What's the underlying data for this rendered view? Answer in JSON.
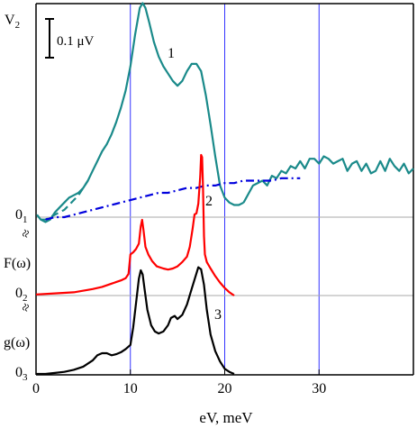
{
  "chart_data": {
    "type": "line",
    "xlabel": "eV, meV",
    "xlim": [
      0,
      40
    ],
    "x_ticks": [
      0,
      10,
      20,
      30
    ],
    "vertical_gridlines": [
      10,
      20,
      30
    ],
    "scale_bar_label": "0.1 μV",
    "y_axis_labels": [
      {
        "text": "V",
        "sub": "2"
      },
      {
        "text": "0",
        "sub": "1"
      },
      {
        "text": "F(ω)",
        "sub": ""
      },
      {
        "text": "0",
        "sub": "2"
      },
      {
        "text": "g(ω)",
        "sub": ""
      },
      {
        "text": "0",
        "sub": "3"
      }
    ],
    "break_symbol": "≈",
    "series": [
      {
        "label": "1",
        "color": "#1a8a8a",
        "style": "solid",
        "x": [
          0.1,
          0.5,
          1,
          1.5,
          2,
          2.5,
          3,
          3.5,
          4,
          4.5,
          5,
          5.5,
          6,
          6.5,
          7,
          7.5,
          8,
          8.5,
          9,
          9.5,
          10,
          10.5,
          11,
          11.3,
          11.6,
          12,
          12.5,
          13,
          13.5,
          14,
          14.5,
          15,
          15.5,
          16,
          16.5,
          17,
          17.5,
          18,
          18.5,
          19,
          19.5,
          20,
          20.5,
          21,
          21.5,
          22
        ],
        "y": [
          0.01,
          -0.01,
          -0.02,
          -0.01,
          0.02,
          0.04,
          0.06,
          0.08,
          0.09,
          0.1,
          0.12,
          0.15,
          0.19,
          0.23,
          0.27,
          0.3,
          0.34,
          0.39,
          0.45,
          0.52,
          0.62,
          0.75,
          0.86,
          0.88,
          0.86,
          0.8,
          0.72,
          0.66,
          0.62,
          0.59,
          0.56,
          0.54,
          0.56,
          0.6,
          0.63,
          0.63,
          0.6,
          0.5,
          0.38,
          0.25,
          0.13,
          0.08,
          0.06,
          0.05,
          0.05,
          0.06
        ]
      },
      {
        "label": "",
        "color": "#1a8a8a",
        "style": "dashed",
        "x": [
          0.5,
          1,
          1.5,
          2,
          2.5,
          3,
          3.5,
          4,
          4.5,
          5,
          5.5
        ],
        "y": [
          -0.01,
          -0.01,
          0.0,
          0.01,
          0.02,
          0.03,
          0.05,
          0.07,
          0.09,
          0.12,
          0.15
        ]
      },
      {
        "label": "",
        "color": "#1a8a8a",
        "style": "noisy",
        "x": [
          22,
          23,
          24,
          24.5,
          25,
          25.5,
          26,
          26.5,
          27,
          27.5,
          28,
          28.5,
          29,
          29.5,
          30,
          30.5,
          31,
          31.5,
          32,
          32.5,
          33,
          33.5,
          34,
          34.5,
          35,
          35.5,
          36,
          36.5,
          37,
          37.5,
          38,
          38.5,
          39,
          39.5,
          40
        ],
        "y": [
          0.06,
          0.13,
          0.15,
          0.13,
          0.17,
          0.16,
          0.19,
          0.18,
          0.21,
          0.2,
          0.23,
          0.2,
          0.24,
          0.24,
          0.22,
          0.25,
          0.24,
          0.22,
          0.23,
          0.24,
          0.19,
          0.22,
          0.23,
          0.19,
          0.22,
          0.18,
          0.19,
          0.23,
          0.19,
          0.24,
          0.21,
          0.19,
          0.22,
          0.18,
          0.2
        ]
      },
      {
        "label": "",
        "color": "#0000dd",
        "style": "dashdot",
        "x": [
          1,
          2,
          3,
          4,
          5,
          6,
          7,
          8,
          9,
          10,
          11,
          12,
          13,
          14,
          15,
          16,
          17,
          18,
          19,
          20,
          21,
          22,
          23,
          24,
          25,
          26,
          27,
          28
        ],
        "y": [
          -0.01,
          0.0,
          0.0,
          0.01,
          0.02,
          0.03,
          0.04,
          0.05,
          0.06,
          0.07,
          0.08,
          0.09,
          0.1,
          0.1,
          0.11,
          0.12,
          0.12,
          0.13,
          0.13,
          0.14,
          0.14,
          0.15,
          0.15,
          0.15,
          0.15,
          0.16,
          0.16,
          0.16
        ]
      },
      {
        "label": "2",
        "color": "#ff0000",
        "style": "solid",
        "x": [
          0,
          2,
          4,
          6,
          7,
          8,
          9,
          9.5,
          9.8,
          10,
          10.3,
          10.6,
          10.9,
          11.1,
          11.25,
          11.4,
          11.6,
          11.9,
          12.3,
          12.8,
          13.5,
          14,
          14.5,
          15,
          15.5,
          16,
          16.3,
          16.6,
          16.8,
          17,
          17.2,
          17.4,
          17.5,
          17.6,
          17.7,
          17.8,
          17.9,
          18.1,
          18.5,
          19,
          19.5,
          20,
          20.5,
          21
        ],
        "y": [
          0.01,
          0.02,
          0.03,
          0.06,
          0.08,
          0.11,
          0.14,
          0.16,
          0.2,
          0.38,
          0.4,
          0.43,
          0.48,
          0.64,
          0.7,
          0.6,
          0.45,
          0.38,
          0.32,
          0.27,
          0.25,
          0.24,
          0.25,
          0.27,
          0.31,
          0.36,
          0.45,
          0.62,
          0.75,
          0.76,
          0.85,
          1.1,
          1.3,
          1.28,
          1.0,
          0.55,
          0.38,
          0.31,
          0.25,
          0.18,
          0.12,
          0.07,
          0.03,
          0.0
        ]
      },
      {
        "label": "3",
        "color": "#000000",
        "style": "solid",
        "x": [
          0,
          1,
          2,
          3,
          4,
          5,
          6,
          6.5,
          7,
          7.5,
          8,
          8.5,
          9,
          9.5,
          10,
          10.3,
          10.6,
          10.9,
          11.1,
          11.3,
          11.5,
          11.8,
          12.2,
          12.6,
          13,
          13.5,
          14,
          14.3,
          14.7,
          15,
          15.5,
          16,
          16.5,
          17,
          17.2,
          17.5,
          17.8,
          18.1,
          18.5,
          19,
          19.5,
          20,
          20.5,
          21
        ],
        "y": [
          0.0,
          0.0,
          0.01,
          0.02,
          0.04,
          0.07,
          0.13,
          0.18,
          0.2,
          0.2,
          0.18,
          0.19,
          0.21,
          0.24,
          0.28,
          0.45,
          0.68,
          0.92,
          1.0,
          0.96,
          0.82,
          0.62,
          0.47,
          0.41,
          0.39,
          0.41,
          0.47,
          0.54,
          0.56,
          0.53,
          0.57,
          0.67,
          0.82,
          0.97,
          1.03,
          1.01,
          0.86,
          0.62,
          0.38,
          0.22,
          0.12,
          0.05,
          0.02,
          0.0
        ]
      }
    ]
  }
}
